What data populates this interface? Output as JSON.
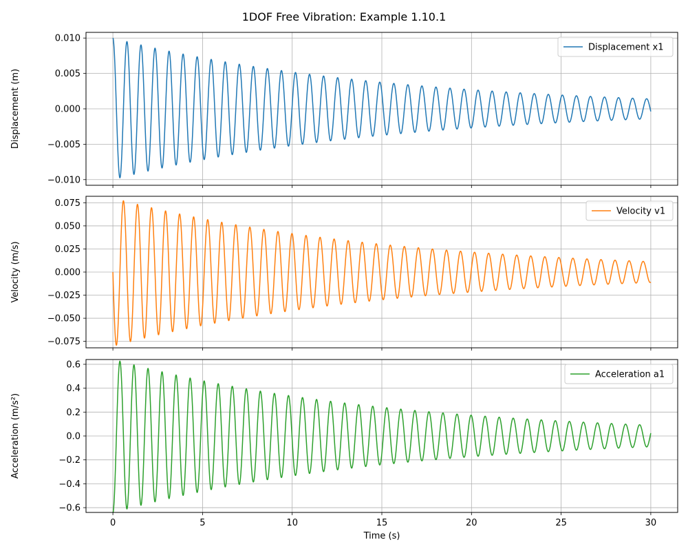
{
  "figure": {
    "title": "1DOF Free Vibration: Example 1.10.1"
  },
  "chart_data": [
    {
      "type": "line",
      "name": "displacement",
      "xlabel": "",
      "ylabel": "Displacement (m)",
      "xlim": [
        -1.5,
        31.5
      ],
      "ylim": [
        -0.0108,
        0.0108
      ],
      "xticks": [
        0,
        5,
        10,
        15,
        20,
        25,
        30
      ],
      "yticks": [
        -0.01,
        -0.005,
        0.0,
        0.005,
        0.01
      ],
      "ytick_labels": [
        "−0.010",
        "−0.005",
        "0.000",
        "0.005",
        "0.010"
      ],
      "show_xtick_labels": false,
      "grid": true,
      "legend": {
        "position": "top-right",
        "label": "Displacement x1"
      },
      "color": "#1f77b4",
      "series": [
        {
          "name": "Displacement x1",
          "model": {
            "A": 0.01,
            "decay": 0.0654,
            "omega": 8.02,
            "phase": 1.5708,
            "t0": 0,
            "t1": 30,
            "samples": 3000
          }
        }
      ]
    },
    {
      "type": "line",
      "name": "velocity",
      "xlabel": "",
      "ylabel": "Velocity (m/s)",
      "xlim": [
        -1.5,
        31.5
      ],
      "ylim": [
        -0.082,
        0.082
      ],
      "xticks": [
        0,
        5,
        10,
        15,
        20,
        25,
        30
      ],
      "yticks": [
        -0.075,
        -0.05,
        -0.025,
        0.0,
        0.025,
        0.05,
        0.075
      ],
      "ytick_labels": [
        "−0.075",
        "−0.050",
        "−0.025",
        "0.000",
        "0.025",
        "0.050",
        "0.075"
      ],
      "show_xtick_labels": false,
      "grid": true,
      "legend": {
        "position": "top-right",
        "label": "Velocity v1"
      },
      "color": "#ff7f0e",
      "series": [
        {
          "name": "Velocity v1",
          "model": {
            "A": 0.0802,
            "decay": 0.0654,
            "omega": 8.02,
            "phase": 3.1416,
            "t0": 0,
            "t1": 30,
            "samples": 3000
          }
        }
      ]
    },
    {
      "type": "line",
      "name": "acceleration",
      "xlabel": "Time (s)",
      "ylabel": "Acceleration (m/s²)",
      "xlim": [
        -1.5,
        31.5
      ],
      "ylim": [
        -0.64,
        0.64
      ],
      "xticks": [
        0,
        5,
        10,
        15,
        20,
        25,
        30
      ],
      "yticks": [
        -0.6,
        -0.4,
        -0.2,
        0.0,
        0.2,
        0.4,
        0.6
      ],
      "ytick_labels": [
        "−0.6",
        "−0.4",
        "−0.2",
        "0.0",
        "0.2",
        "0.4",
        "0.6"
      ],
      "xtick_labels": [
        "0",
        "5",
        "10",
        "15",
        "20",
        "25",
        "30"
      ],
      "show_xtick_labels": true,
      "grid": true,
      "legend": {
        "position": "top-right",
        "label": "Acceleration a1"
      },
      "color": "#2ca02c",
      "series": [
        {
          "name": "Acceleration a1",
          "model": {
            "A": 0.643,
            "decay": 0.0654,
            "omega": 8.02,
            "phase": -1.5708,
            "t0": 0,
            "t1": 30,
            "samples": 3000
          }
        }
      ]
    }
  ]
}
